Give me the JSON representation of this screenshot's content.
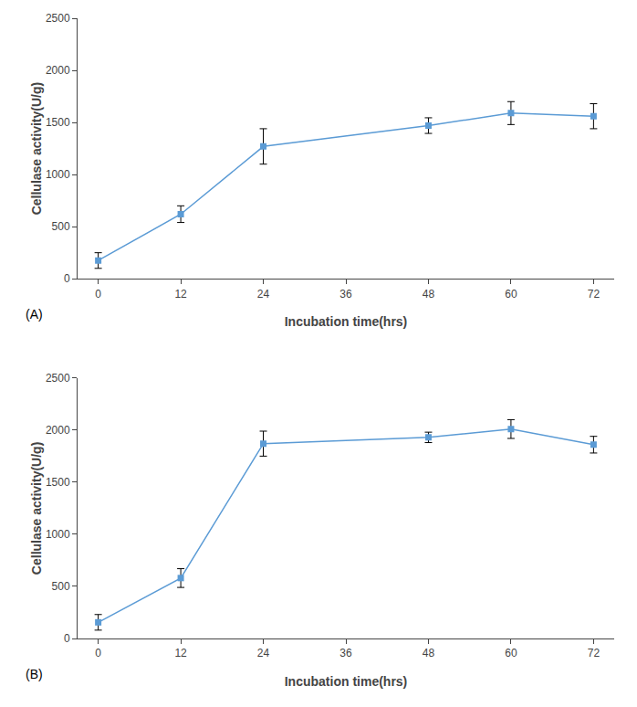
{
  "chart_data": [
    {
      "type": "line",
      "x": [
        0,
        12,
        24,
        48,
        60,
        72
      ],
      "values": [
        175,
        620,
        1270,
        1470,
        1590,
        1560
      ],
      "yerr": [
        75,
        80,
        170,
        75,
        110,
        120
      ],
      "annotations": [
        "(A)"
      ],
      "xlabel": "Incubation time(hrs)",
      "ylabel": "Cellulase activity(U/g)",
      "color": "#5b9bd5",
      "marker": "square",
      "xlim": [
        -3,
        75
      ],
      "xticks": [
        0,
        12,
        24,
        36,
        48,
        60,
        72
      ],
      "ylim": [
        0,
        2500
      ],
      "yticks": [
        0,
        500,
        1000,
        1500,
        2000,
        2500
      ],
      "grid": false
    },
    {
      "type": "line",
      "x": [
        0,
        12,
        24,
        48,
        60,
        72
      ],
      "values": [
        155,
        580,
        1870,
        1930,
        2010,
        1860
      ],
      "yerr": [
        75,
        90,
        120,
        50,
        90,
        80
      ],
      "annotations": [
        "(B)"
      ],
      "xlabel": "Incubation time(hrs)",
      "ylabel": "Cellulase activity(U/g)",
      "color": "#5b9bd5",
      "marker": "square",
      "xlim": [
        -3,
        75
      ],
      "xticks": [
        0,
        12,
        24,
        36,
        48,
        60,
        72
      ],
      "ylim": [
        0,
        2500
      ],
      "yticks": [
        0,
        500,
        1000,
        1500,
        2000,
        2500
      ],
      "grid": false
    }
  ]
}
